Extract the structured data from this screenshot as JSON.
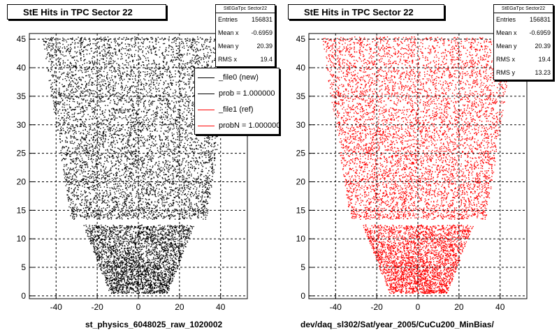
{
  "panels": [
    {
      "title": "StE Hits in TPC Sector 22",
      "color": "#000000",
      "stats": {
        "name": "StEGaTpc Sector22",
        "rows": [
          {
            "label": "Entries",
            "value": "156831"
          },
          {
            "label": "Mean x",
            "value": "-0.6959"
          },
          {
            "label": "Mean y",
            "value": "20.39"
          },
          {
            "label": "RMS x",
            "value": "19.4"
          }
        ]
      },
      "legend": [
        {
          "label": "_file0 (new)",
          "color": "#000000"
        },
        {
          "label": "prob = 1.000000",
          "color": "#000000"
        },
        {
          "label": "_file1 (ref)",
          "color": "#ff0000"
        },
        {
          "label": "probN = 1.000000",
          "color": "#ff0000"
        }
      ],
      "footer": "st_physics_6048025_raw_1020002"
    },
    {
      "title": "StE Hits in TPC Sector 22",
      "color": "#ff0000",
      "stats": {
        "name": "StEGaTpc Sector22",
        "rows": [
          {
            "label": "Entries",
            "value": "156831"
          },
          {
            "label": "Mean x",
            "value": "-0.6959"
          },
          {
            "label": "Mean y",
            "value": "20.39"
          },
          {
            "label": "RMS x",
            "value": "19.4"
          },
          {
            "label": "RMS y",
            "value": "13.23"
          }
        ]
      },
      "footer": "dev/daq_sl302/Sat/year_2005/CuCu200_MinBias/"
    }
  ],
  "chart_data": {
    "type": "scatter",
    "xlim": [
      -53,
      53
    ],
    "ylim": [
      -0.5,
      46
    ],
    "x_ticks": [
      -40,
      -20,
      0,
      20,
      40
    ],
    "y_ticks": [
      0,
      5,
      10,
      15,
      20,
      25,
      30,
      35,
      40,
      45
    ],
    "grid": true,
    "outer_region": {
      "y_range": [
        13.5,
        45.5
      ],
      "half_width_at_y": [
        [
          13.5,
          33
        ],
        [
          45.5,
          47
        ]
      ]
    },
    "inner_region": {
      "y_range": [
        0.5,
        12.5
      ],
      "half_width_at_y": [
        [
          0.5,
          14
        ],
        [
          12.5,
          27
        ]
      ]
    },
    "point_count": 9000
  }
}
